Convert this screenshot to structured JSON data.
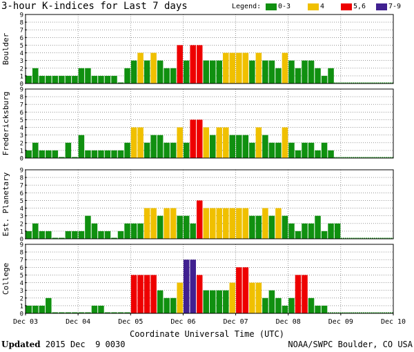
{
  "header": {
    "title": "3-hour K-indices for Last 7 days"
  },
  "legend": {
    "label": "Legend:",
    "items": [
      {
        "label": "0-3",
        "color": "#109010"
      },
      {
        "label": "4",
        "color": "#f0c000"
      },
      {
        "label": "5,6",
        "color": "#ee0000"
      },
      {
        "label": "7-9",
        "color": "#402090"
      }
    ]
  },
  "chart_data": {
    "type": "bar",
    "title": "3-hour K-indices for Last 7 days",
    "xlabel": "Coordinate Universal Time (UTC)",
    "x_ticks": [
      "Dec 03",
      "Dec 04",
      "Dec 05",
      "Dec 06",
      "Dec 07",
      "Dec 08",
      "Dec 09",
      "Dec 10"
    ],
    "ylim": [
      0,
      9
    ],
    "y_ticks": [
      "0",
      "1",
      "2",
      "3",
      "4",
      "5",
      "6",
      "7",
      "8",
      "9"
    ],
    "grid": true,
    "legend_position": "top-right",
    "panels": [
      {
        "name": "Boulder",
        "values": [
          1,
          2,
          1,
          1,
          1,
          1,
          1,
          1,
          2,
          2,
          1,
          1,
          1,
          1,
          0,
          2,
          3,
          4,
          3,
          4,
          3,
          2,
          2,
          5,
          3,
          5,
          5,
          3,
          3,
          3,
          4,
          4,
          4,
          4,
          3,
          4,
          3,
          3,
          2,
          4,
          3,
          2,
          3,
          3,
          2,
          1,
          2,
          null,
          null,
          null,
          null,
          null,
          null,
          null,
          null,
          null
        ]
      },
      {
        "name": "Fredericksburg",
        "values": [
          1,
          2,
          1,
          1,
          1,
          0,
          2,
          0,
          3,
          1,
          1,
          1,
          1,
          1,
          1,
          2,
          4,
          4,
          2,
          3,
          3,
          2,
          2,
          4,
          2,
          5,
          5,
          4,
          3,
          4,
          4,
          3,
          3,
          3,
          2,
          4,
          3,
          2,
          2,
          4,
          2,
          1,
          2,
          2,
          1,
          2,
          1,
          null,
          null,
          null,
          null,
          null,
          null,
          null,
          null,
          null
        ]
      },
      {
        "name": "Est. Planetary",
        "values": [
          1,
          2,
          1,
          1,
          0,
          0,
          1,
          1,
          1,
          3,
          2,
          1,
          1,
          0,
          1,
          2,
          2,
          2,
          4,
          4,
          3,
          4,
          4,
          3,
          3,
          2,
          5,
          4,
          4,
          4,
          4,
          4,
          4,
          4,
          3,
          3,
          4,
          3,
          4,
          3,
          2,
          1,
          2,
          2,
          3,
          1,
          2,
          2,
          null,
          null,
          null,
          null,
          null,
          null,
          null,
          null
        ]
      },
      {
        "name": "College",
        "values": [
          1,
          1,
          1,
          2,
          0,
          0,
          0,
          0,
          0,
          0,
          1,
          1,
          0,
          0,
          0,
          0,
          5,
          5,
          5,
          5,
          3,
          2,
          2,
          4,
          7,
          7,
          5,
          3,
          3,
          3,
          3,
          4,
          6,
          6,
          4,
          4,
          2,
          3,
          2,
          1,
          2,
          5,
          5,
          2,
          1,
          1,
          null,
          null,
          null,
          null,
          null,
          null,
          null,
          null,
          null,
          null
        ]
      }
    ]
  },
  "footer": {
    "updated_label": "Updated",
    "updated_value": "2015 Dec  9 0030",
    "credit": "NOAA/SWPC Boulder, CO USA"
  }
}
